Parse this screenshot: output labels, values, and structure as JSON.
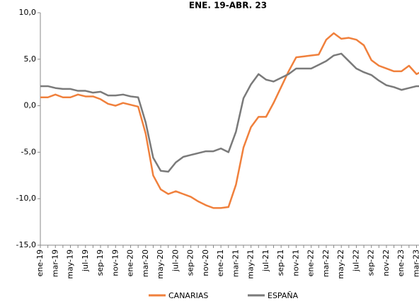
{
  "chart_data": {
    "type": "line",
    "title": "ENE. 19-ABR. 23",
    "categories": [
      "ene-19",
      null,
      "mar-19",
      null,
      "may-19",
      null,
      "jul-19",
      null,
      "sep-19",
      null,
      "nov-19",
      null,
      "ene-20",
      null,
      "mar-20",
      null,
      "may-20",
      null,
      "jul-20",
      null,
      "sep-20",
      null,
      "nov-20",
      null,
      "ene-21",
      null,
      "mar-21",
      null,
      "may-21",
      null,
      "jul-21",
      null,
      "sep-21",
      null,
      "nov-21",
      null,
      "ene-22",
      null,
      "mar-22",
      null,
      "may-22",
      null,
      "jul-22",
      null,
      "sep-22",
      null,
      "nov-22",
      null,
      "ene-23",
      null,
      "mar-23",
      null
    ],
    "series": [
      {
        "name": "CANARIAS",
        "color": "#f0803c",
        "values": [
          0.9,
          0.9,
          1.2,
          0.9,
          0.9,
          1.2,
          1.0,
          1.0,
          0.7,
          0.2,
          0.0,
          0.3,
          0.1,
          -0.1,
          -3.0,
          -7.5,
          -9.0,
          -9.5,
          -9.2,
          -9.5,
          -9.8,
          -10.3,
          -10.7,
          -11.0,
          -11.0,
          -10.9,
          -8.5,
          -4.5,
          -2.3,
          -1.2,
          -1.2,
          0.3,
          2.0,
          3.7,
          5.2,
          5.3,
          5.4,
          5.5,
          7.1,
          7.8,
          7.2,
          7.3,
          7.1,
          6.5,
          4.9,
          4.3,
          4.0,
          3.7,
          3.7,
          4.3,
          3.4,
          3.8
        ]
      },
      {
        "name": "ESPAÑA",
        "color": "#7a7a7a",
        "values": [
          2.1,
          2.1,
          1.9,
          1.8,
          1.8,
          1.6,
          1.6,
          1.4,
          1.5,
          1.1,
          1.1,
          1.2,
          1.0,
          0.9,
          -1.8,
          -5.6,
          -7.0,
          -7.1,
          -6.1,
          -5.5,
          -5.3,
          -5.1,
          -4.9,
          -4.9,
          -4.6,
          -5.0,
          -2.8,
          0.8,
          2.3,
          3.4,
          2.8,
          2.6,
          3.0,
          3.4,
          4.0,
          4.0,
          4.0,
          4.4,
          4.8,
          5.4,
          5.6,
          4.8,
          4.0,
          3.6,
          3.3,
          2.7,
          2.2,
          2.0,
          1.7,
          1.9,
          2.1,
          2.1
        ]
      }
    ],
    "ylim": [
      -15,
      10
    ],
    "yticks": [
      {
        "value": -15,
        "label": "-15,0"
      },
      {
        "value": -10,
        "label": "-10,0"
      },
      {
        "value": -5,
        "label": "-5,0"
      },
      {
        "value": 0,
        "label": "0,0"
      },
      {
        "value": 5,
        "label": "5,0"
      },
      {
        "value": 10,
        "label": "10,0"
      }
    ],
    "legend": "bottom",
    "grid": false
  }
}
